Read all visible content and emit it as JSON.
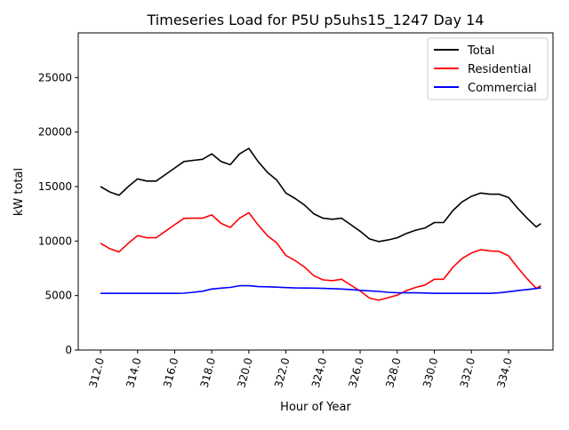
{
  "chart_data": {
    "type": "line",
    "title": "Timeseries Load for P5U p5uhs15_1247  Day 14",
    "xlabel": "Hour of Year",
    "ylabel": "kW total",
    "xlim": [
      310.8,
      336.4
    ],
    "ylim": [
      0,
      29100
    ],
    "xticks": [
      "312.0",
      "314.0",
      "316.0",
      "318.0",
      "320.0",
      "322.0",
      "324.0",
      "326.0",
      "328.0",
      "330.0",
      "332.0",
      "334.0"
    ],
    "xtick_values": [
      312,
      314,
      316,
      318,
      320,
      322,
      324,
      326,
      328,
      330,
      332,
      334
    ],
    "yticks": [
      "0",
      "5000",
      "10000",
      "15000",
      "20000",
      "25000"
    ],
    "ytick_values": [
      0,
      5000,
      10000,
      15000,
      20000,
      25000
    ],
    "legend_position": "top-right",
    "x": [
      312,
      312.5,
      313,
      313.5,
      314,
      314.5,
      315,
      315.5,
      316,
      316.5,
      317,
      317.5,
      318,
      318.5,
      319,
      319.5,
      320,
      320.5,
      321,
      321.5,
      322,
      322.5,
      323,
      323.5,
      324,
      324.5,
      325,
      325.5,
      326,
      326.5,
      327,
      327.5,
      328,
      328.5,
      329,
      329.5,
      330,
      330.5,
      331,
      331.5,
      332,
      332.5,
      333,
      333.5,
      334,
      334.5,
      335,
      335.5,
      335.75
    ],
    "series": [
      {
        "name": "Total",
        "color": "#000000",
        "values": [
          15000,
          14500,
          14200,
          15000,
          15700,
          15500,
          15500,
          16100,
          16700,
          17300,
          17400,
          17500,
          18000,
          17300,
          17000,
          18000,
          18500,
          17300,
          16300,
          15600,
          14400,
          13900,
          13300,
          12500,
          12100,
          12000,
          12100,
          11500,
          10900,
          10200,
          9950,
          10100,
          10300,
          10700,
          11000,
          11200,
          11700,
          11700,
          12800,
          13600,
          14100,
          14400,
          14300,
          14300,
          14000,
          13000,
          12100,
          11300,
          11600
        ]
      },
      {
        "name": "Residential",
        "color": "#ff0000",
        "values": [
          9800,
          9300,
          9000,
          9800,
          10500,
          10300,
          10300,
          10900,
          11500,
          12080,
          12100,
          12100,
          12400,
          11620,
          11250,
          12100,
          12600,
          11480,
          10500,
          9830,
          8670,
          8200,
          7610,
          6820,
          6440,
          6370,
          6500,
          5950,
          5420,
          4770,
          4570,
          4800,
          5040,
          5450,
          5750,
          5970,
          6500,
          6500,
          7600,
          8400,
          8900,
          9200,
          9100,
          9050,
          8650,
          7550,
          6550,
          5650,
          5900
        ]
      },
      {
        "name": "Commercial",
        "color": "#0000ff",
        "values": [
          5200,
          5200,
          5200,
          5200,
          5200,
          5200,
          5200,
          5200,
          5200,
          5220,
          5300,
          5400,
          5600,
          5680,
          5750,
          5900,
          5900,
          5820,
          5800,
          5770,
          5730,
          5700,
          5690,
          5680,
          5660,
          5630,
          5600,
          5550,
          5480,
          5430,
          5380,
          5300,
          5260,
          5250,
          5250,
          5230,
          5200,
          5200,
          5200,
          5200,
          5200,
          5200,
          5200,
          5250,
          5350,
          5450,
          5550,
          5650,
          5700
        ]
      }
    ]
  }
}
